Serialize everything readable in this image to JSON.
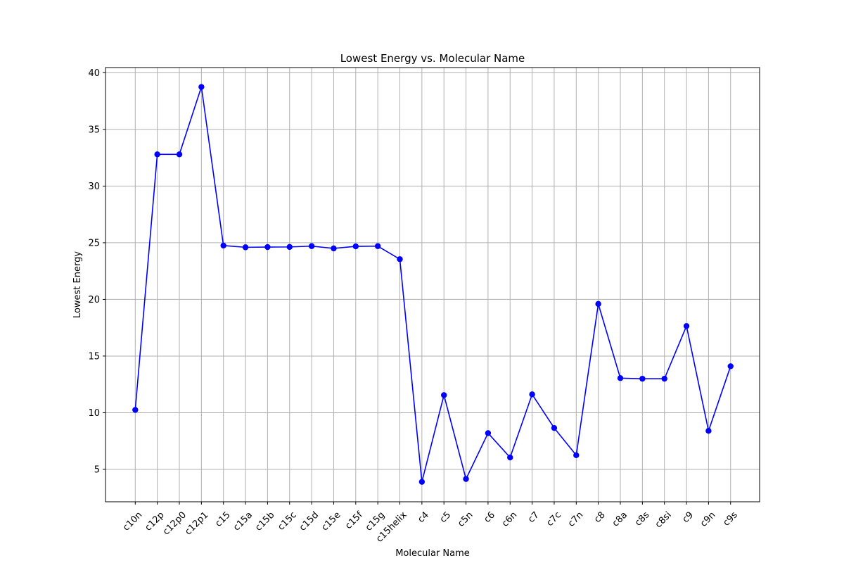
{
  "chart_data": {
    "type": "line",
    "title": "Lowest Energy vs. Molecular Name",
    "xlabel": "Molecular Name",
    "ylabel": "Lowest Energy",
    "categories": [
      "c10n",
      "c12p",
      "c12p0",
      "c12p1",
      "c15",
      "c15a",
      "c15b",
      "c15c",
      "c15d",
      "c15e",
      "c15f",
      "c15g",
      "c15helix",
      "c4",
      "c5",
      "c5n",
      "c6",
      "c6n",
      "c7",
      "c7c",
      "c7n",
      "c8",
      "c8a",
      "c8s",
      "c8si",
      "c9",
      "c9n",
      "c9s"
    ],
    "series": [
      {
        "values": [
          10.25,
          32.8,
          32.8,
          38.75,
          24.75,
          24.6,
          24.62,
          24.63,
          24.7,
          24.5,
          24.68,
          24.7,
          23.55,
          3.9,
          11.55,
          4.15,
          8.2,
          6.05,
          11.62,
          8.65,
          6.25,
          19.6,
          13.05,
          13.0,
          13.0,
          17.65,
          8.4,
          14.1
        ]
      }
    ],
    "ylim": [
      2.14,
      40.46
    ],
    "yticks": [
      5,
      10,
      15,
      20,
      25,
      30,
      35,
      40
    ],
    "grid": true,
    "legend": "none",
    "colors": {
      "line": "#0000ff",
      "marker": "#0000ff",
      "grid": "#b0b0b0",
      "axes": "#000000"
    }
  }
}
